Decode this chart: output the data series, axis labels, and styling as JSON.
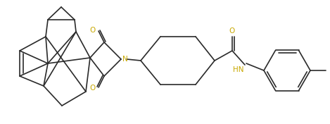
{
  "background": "#ffffff",
  "line_color": "#2a2a2a",
  "line_width": 1.2,
  "label_color_N": "#c8a800",
  "label_color_O": "#c8a800",
  "label_color_HN": "#c8a800",
  "font_size": 7.0,
  "fig_w": 4.69,
  "fig_h": 1.76,
  "dpi": 100,
  "xlim": [
    0,
    469
  ],
  "ylim": [
    0,
    176
  ]
}
